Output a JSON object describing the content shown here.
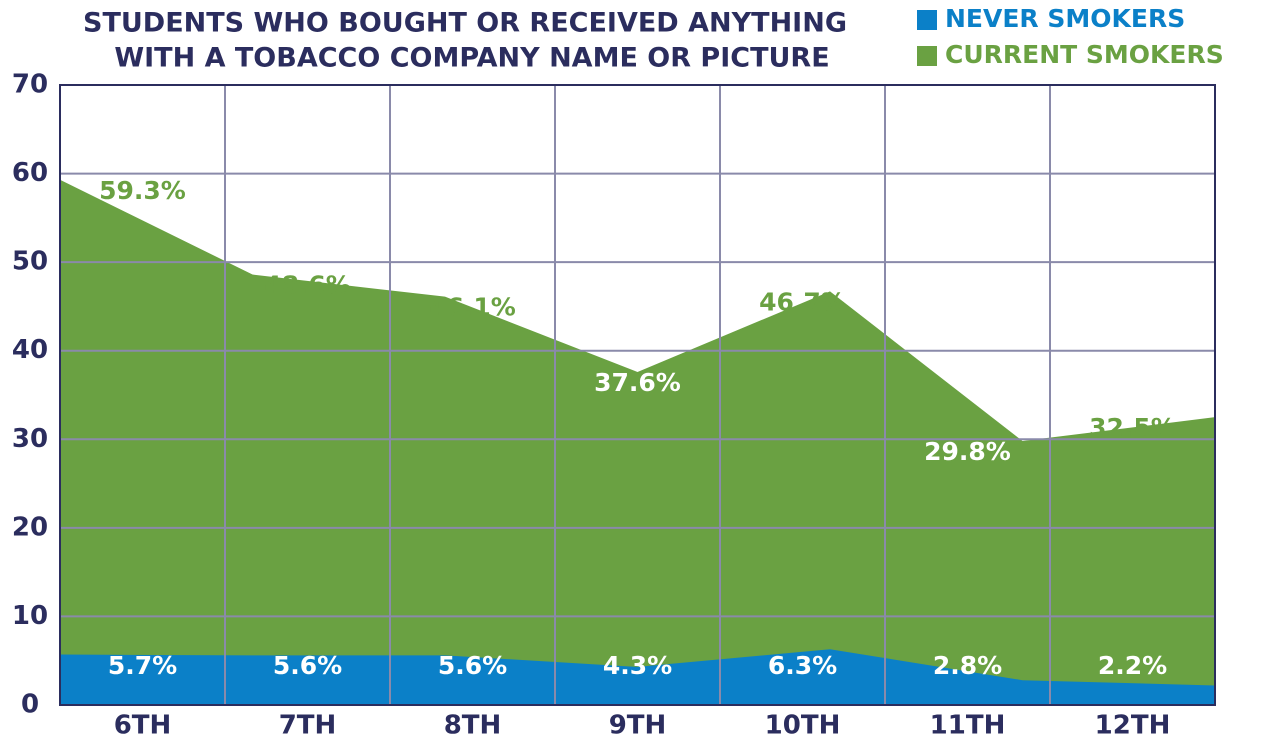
{
  "chart_data": {
    "type": "area",
    "title": [
      "STUDENTS WHO BOUGHT OR RECEIVED ANYTHING",
      "WITH A TOBACCO COMPANY NAME OR PICTURE"
    ],
    "categories": [
      "6TH",
      "7TH",
      "8TH",
      "9TH",
      "10TH",
      "11TH",
      "12TH"
    ],
    "series": [
      {
        "name": "CURRENT SMOKERS",
        "color": "#6aa142",
        "values": [
          59.3,
          48.6,
          46.1,
          37.6,
          46.7,
          29.8,
          32.5
        ],
        "value_labels": [
          "59.3%",
          "48.6%",
          "46.1%",
          "37.6%",
          "46.7%",
          "29.8%",
          "32.5%"
        ]
      },
      {
        "name": "NEVER SMOKERS",
        "color": "#0b80c8",
        "values": [
          5.7,
          5.6,
          5.6,
          4.3,
          6.3,
          2.8,
          2.2
        ],
        "value_labels": [
          "5.7%",
          "5.6%",
          "5.6%",
          "4.3%",
          "6.3%",
          "2.8%",
          "2.2%"
        ]
      }
    ],
    "ylim": [
      0,
      70
    ],
    "yticks": [
      0,
      10,
      20,
      30,
      40,
      50,
      60,
      70
    ],
    "grid": true,
    "legend": "top-right"
  }
}
